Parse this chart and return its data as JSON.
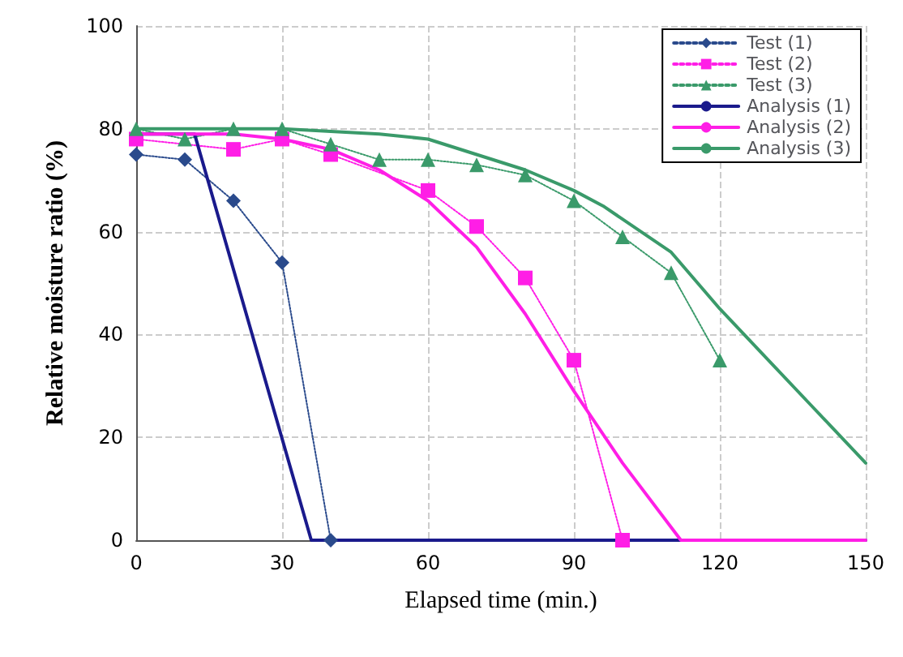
{
  "chart_data": {
    "type": "line",
    "xlabel": "Elapsed time (min.)",
    "ylabel": "Relative moisture ratio (%)",
    "xlim": [
      0,
      150
    ],
    "xticks": [
      0,
      30,
      60,
      90,
      120,
      150
    ],
    "ylim": [
      0,
      100
    ],
    "yticks": [
      0,
      20,
      40,
      60,
      80,
      100
    ],
    "grid": true,
    "legend": "top right",
    "series": [
      {
        "name": "Test (1)",
        "color": "#2a4a8c",
        "marker": "diamond",
        "line_style": "dotted",
        "x": [
          0,
          10,
          20,
          30,
          40
        ],
        "values": [
          75,
          74,
          66,
          54,
          0
        ]
      },
      {
        "name": "Test (2)",
        "color": "#ff1ee6",
        "marker": "square",
        "line_style": "dotted",
        "x": [
          0,
          10,
          20,
          30,
          40,
          60,
          70,
          80,
          90,
          100
        ],
        "values": [
          78,
          null,
          76,
          78,
          75,
          68,
          61,
          51,
          35,
          0
        ]
      },
      {
        "name": "Test (3)",
        "color": "#3a9a6a",
        "marker": "triangle",
        "line_style": "dotted",
        "x": [
          0,
          10,
          20,
          30,
          40,
          50,
          60,
          70,
          80,
          90,
          100,
          110,
          120
        ],
        "values": [
          80,
          78,
          80,
          80,
          77,
          74,
          74,
          73,
          71,
          66,
          59,
          52,
          35
        ]
      },
      {
        "name": "Analysis (1)",
        "color": "#1a1a8c",
        "marker": "none",
        "line_style": "solid",
        "x": [
          0,
          12,
          36,
          150
        ],
        "values": [
          79,
          79,
          0,
          0
        ]
      },
      {
        "name": "Analysis (2)",
        "color": "#ff1ee6",
        "marker": "none",
        "line_style": "solid",
        "x": [
          0,
          20,
          30,
          40,
          50,
          60,
          70,
          80,
          90,
          100,
          112,
          150
        ],
        "values": [
          79,
          79,
          78,
          76,
          72,
          66,
          57,
          44,
          29,
          15,
          0,
          0
        ]
      },
      {
        "name": "Analysis (3)",
        "color": "#3a9a6a",
        "marker": "none",
        "line_style": "solid",
        "x": [
          0,
          30,
          50,
          60,
          70,
          80,
          90,
          96,
          110,
          120,
          130,
          140,
          150
        ],
        "values": [
          80,
          80,
          79,
          78,
          75,
          72,
          68,
          65,
          56,
          45,
          35,
          25,
          15
        ]
      }
    ]
  }
}
